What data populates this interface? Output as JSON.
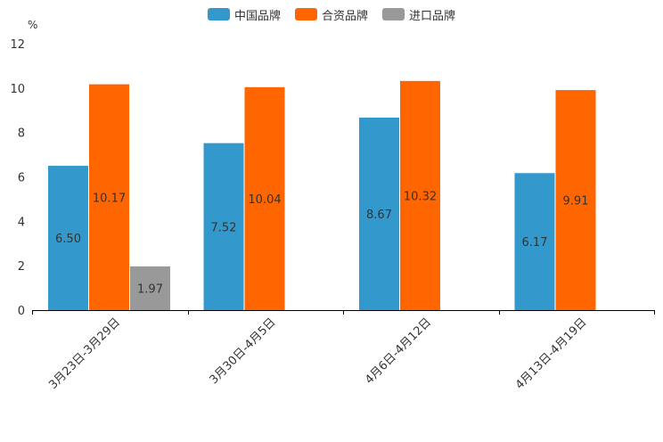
{
  "chart_data": {
    "type": "bar",
    "title": "",
    "xlabel": "",
    "ylabel": "%",
    "ylim": [
      0,
      12
    ],
    "yticks": [
      0,
      2,
      4,
      6,
      8,
      10,
      12
    ],
    "categories": [
      "3月23日-3月29日",
      "3月30日-4月5日",
      "4月6日-4月12日",
      "4月13日-4月19日"
    ],
    "series": [
      {
        "name": "中国品牌",
        "color": "#3399cc",
        "values": [
          6.5,
          7.52,
          8.67,
          6.17
        ],
        "labels": [
          "6.50",
          "7.52",
          "8.67",
          "6.17"
        ]
      },
      {
        "name": "合资品牌",
        "color": "#ff6600",
        "values": [
          10.17,
          10.04,
          10.32,
          9.91
        ],
        "labels": [
          "10.17",
          "10.04",
          "10.32",
          "9.91"
        ]
      },
      {
        "name": "进口品牌",
        "color": "#999999",
        "values": [
          1.97,
          null,
          null,
          null
        ],
        "labels": [
          "1.97",
          "",
          "",
          ""
        ]
      }
    ],
    "legend_position": "top-center",
    "grid": false
  }
}
